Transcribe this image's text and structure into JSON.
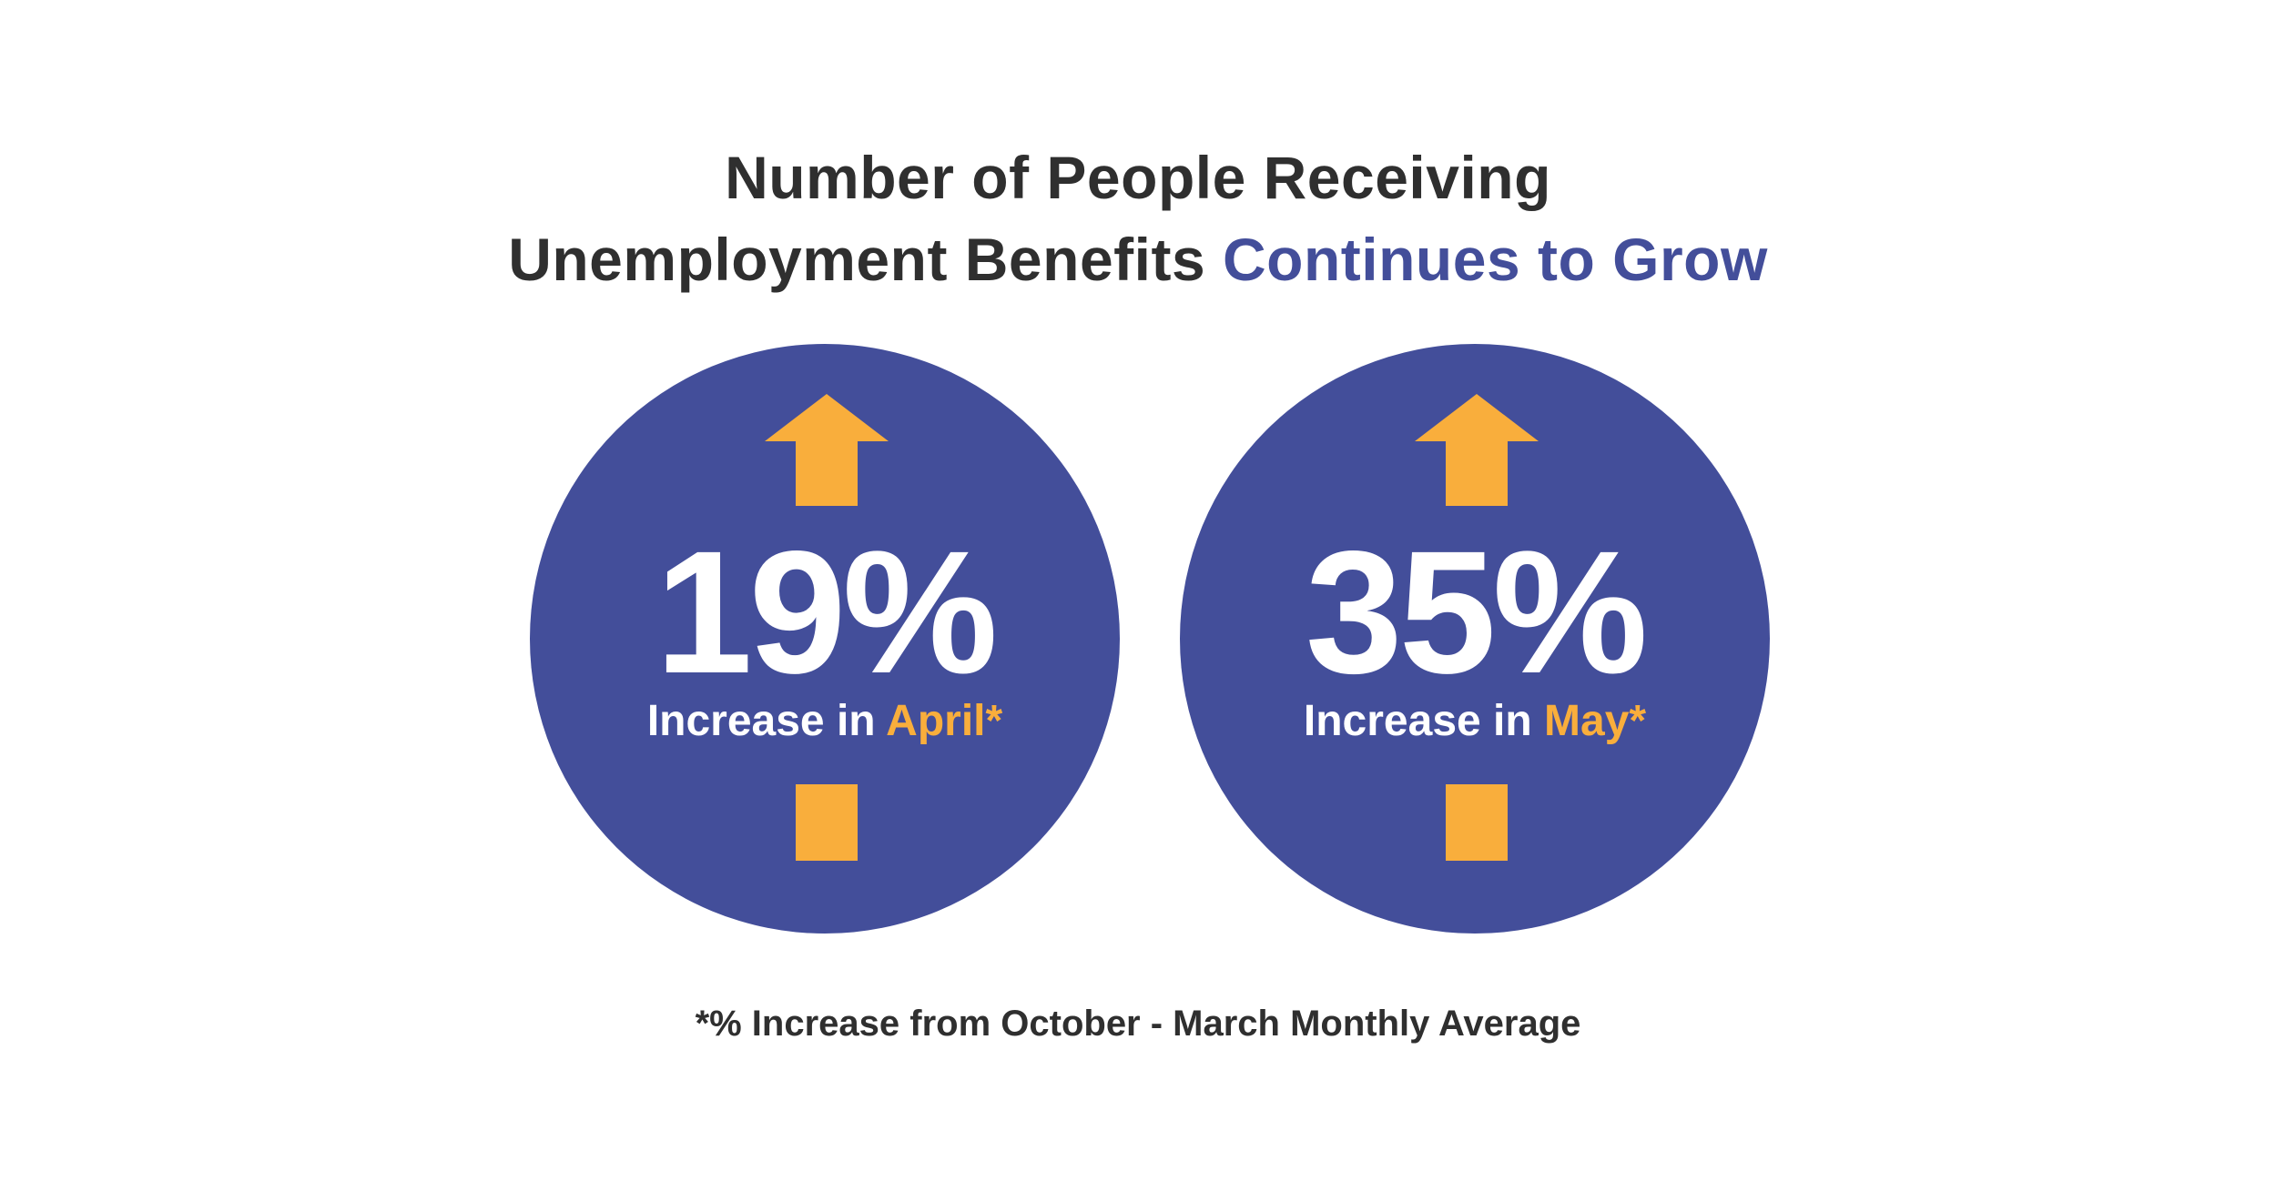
{
  "title": {
    "line1": "Number of People Receiving",
    "line2_plain": "Unemployment Benefits ",
    "line2_accent": "Continues to Grow"
  },
  "stats": [
    {
      "value": "19%",
      "label_prefix": "Increase in ",
      "label_highlight": "April*",
      "percent": 19,
      "direction": "up"
    },
    {
      "value": "35%",
      "label_prefix": "Increase in ",
      "label_highlight": "May*",
      "percent": 35,
      "direction": "up"
    }
  ],
  "footnote": "*% Increase from October - March Monthly Average",
  "colors": {
    "circle": "#434e9a",
    "accent_text": "#434e9a",
    "arrow": "#f9ae3c",
    "month_highlight": "#f9ae3c",
    "dark_text": "#2f2f2f",
    "background": "#ffffff"
  },
  "icons": [
    "arrow-up-icon",
    "arrow-tail-icon"
  ]
}
